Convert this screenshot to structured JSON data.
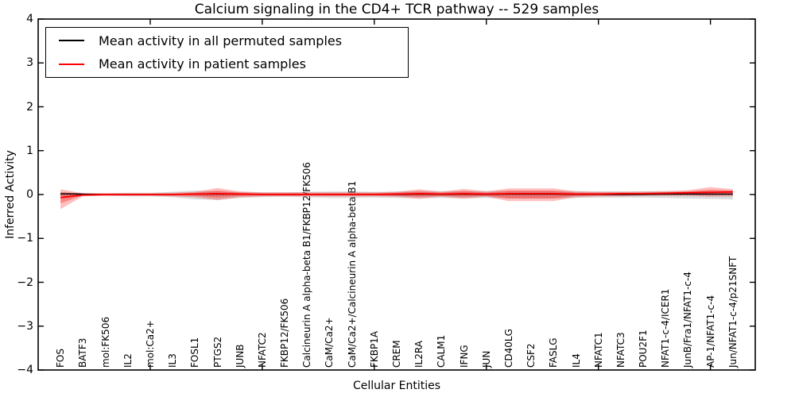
{
  "title": "Calcium signaling in the CD4+ TCR pathway -- 529 samples",
  "axes": {
    "ylabel": "Inferred Activity",
    "xlabel": "Cellular Entities",
    "ytick_labels": [
      "4",
      "3",
      "2",
      "1",
      "0",
      "−1",
      "−2",
      "−3",
      "−4"
    ],
    "ytick_values": [
      4,
      3,
      2,
      1,
      0,
      -1,
      -2,
      -3,
      -4
    ],
    "ylim": [
      -4,
      4
    ]
  },
  "legend": {
    "items": [
      {
        "label": "Mean activity in all permuted samples",
        "color": "#000000"
      },
      {
        "label": "Mean activity in patient samples",
        "color": "#ff0000"
      }
    ]
  },
  "chart_data": {
    "type": "line",
    "title": "Calcium signaling in the CD4+ TCR pathway -- 529 samples",
    "xlabel": "Cellular Entities",
    "ylabel": "Inferred Activity",
    "ylim": [
      -4,
      4
    ],
    "grid": false,
    "legend_position": "upper left",
    "zero_line": 0,
    "categories": [
      "FOS",
      "BATF3",
      "mol:FK506",
      "IL2",
      "mol:Ca2+",
      "IL3",
      "FOSL1",
      "PTGS2",
      "JUNB",
      "NFATC2",
      "FKBP12/FK506",
      "Calcineurin A alpha-beta B1/FKBP12/FK506",
      "CaM/Ca2+",
      "CaM/Ca2+/Calcineurin A alpha-beta B1",
      "FKBP1A",
      "CREM",
      "IL2RA",
      "CALM1",
      "IFNG",
      "JUN",
      "CD40LG",
      "CSF2",
      "FASLG",
      "IL4",
      "NFATC1",
      "NFATC3",
      "POU2F1",
      "NFAT1-c-4/ICER1",
      "JunB/Fra1/NFAT1-c-4",
      "AP-1/NFAT1-c-4",
      "Jun/NFAT1-c-4/p21SNFT"
    ],
    "series": [
      {
        "name": "Mean activity in all permuted samples",
        "color": "#000000",
        "width": 1.3,
        "values": [
          0.02,
          0.01,
          0.0,
          0.0,
          0.0,
          0.0,
          0.01,
          0.01,
          0.01,
          0.0,
          0.0,
          0.0,
          0.0,
          0.0,
          0.0,
          0.0,
          0.01,
          0.0,
          0.01,
          0.0,
          0.01,
          0.01,
          0.01,
          0.0,
          0.0,
          0.0,
          0.0,
          0.01,
          0.01,
          0.01,
          0.01
        ]
      },
      {
        "name": "Mean activity in patient samples",
        "color": "#ff0000",
        "width": 1.8,
        "values": [
          -0.07,
          -0.01,
          0.0,
          0.0,
          0.0,
          0.0,
          0.01,
          0.02,
          0.01,
          0.0,
          0.0,
          0.0,
          0.0,
          0.0,
          0.0,
          0.01,
          0.02,
          0.01,
          0.02,
          0.01,
          0.02,
          0.02,
          0.02,
          0.01,
          0.01,
          0.02,
          0.02,
          0.03,
          0.04,
          0.05,
          0.06
        ]
      }
    ],
    "bands": [
      {
        "name": "permuted-std",
        "color": "#999999",
        "opacity": 0.35,
        "upper": [
          0.05,
          0.03,
          0.03,
          0.04,
          0.04,
          0.06,
          0.09,
          0.07,
          0.06,
          0.05,
          0.05,
          0.06,
          0.07,
          0.07,
          0.06,
          0.07,
          0.08,
          0.08,
          0.08,
          0.08,
          0.08,
          0.08,
          0.08,
          0.08,
          0.07,
          0.07,
          0.07,
          0.07,
          0.07,
          0.08,
          0.08
        ],
        "lower": [
          -0.05,
          -0.03,
          -0.03,
          -0.04,
          -0.04,
          -0.06,
          -0.11,
          -0.12,
          -0.08,
          -0.06,
          -0.05,
          -0.06,
          -0.08,
          -0.08,
          -0.07,
          -0.08,
          -0.08,
          -0.08,
          -0.08,
          -0.08,
          -0.09,
          -0.09,
          -0.09,
          -0.08,
          -0.07,
          -0.07,
          -0.07,
          -0.08,
          -0.09,
          -0.1,
          -0.11
        ]
      },
      {
        "name": "patient-std-outer",
        "color": "#ff0000",
        "opacity": 0.25,
        "upper": [
          0.12,
          0.03,
          0.03,
          0.03,
          0.03,
          0.04,
          0.06,
          0.15,
          0.07,
          0.05,
          0.05,
          0.05,
          0.05,
          0.05,
          0.05,
          0.06,
          0.12,
          0.06,
          0.13,
          0.07,
          0.14,
          0.14,
          0.14,
          0.07,
          0.06,
          0.06,
          0.07,
          0.08,
          0.1,
          0.17,
          0.12
        ],
        "lower": [
          -0.33,
          -0.04,
          -0.03,
          -0.03,
          -0.03,
          -0.04,
          -0.06,
          -0.13,
          -0.06,
          -0.04,
          -0.04,
          -0.04,
          -0.04,
          -0.04,
          -0.04,
          -0.05,
          -0.1,
          -0.05,
          -0.1,
          -0.05,
          -0.15,
          -0.15,
          -0.15,
          -0.06,
          -0.04,
          -0.04,
          -0.03,
          -0.03,
          -0.03,
          -0.05,
          -0.04
        ]
      },
      {
        "name": "patient-std-inner",
        "color": "#ff0000",
        "opacity": 0.3,
        "upper": [
          0.05,
          0.02,
          0.02,
          0.02,
          0.02,
          0.02,
          0.04,
          0.09,
          0.04,
          0.03,
          0.03,
          0.03,
          0.03,
          0.03,
          0.03,
          0.04,
          0.07,
          0.04,
          0.08,
          0.04,
          0.09,
          0.09,
          0.09,
          0.04,
          0.04,
          0.04,
          0.04,
          0.05,
          0.07,
          0.11,
          0.09
        ],
        "lower": [
          -0.2,
          -0.02,
          -0.02,
          -0.02,
          -0.02,
          -0.02,
          -0.03,
          -0.07,
          -0.03,
          -0.02,
          -0.02,
          -0.02,
          -0.02,
          -0.02,
          -0.02,
          -0.03,
          -0.05,
          -0.03,
          -0.05,
          -0.03,
          -0.09,
          -0.09,
          -0.09,
          -0.03,
          -0.02,
          -0.02,
          -0.01,
          -0.01,
          0.0,
          -0.01,
          0.0
        ]
      }
    ]
  }
}
